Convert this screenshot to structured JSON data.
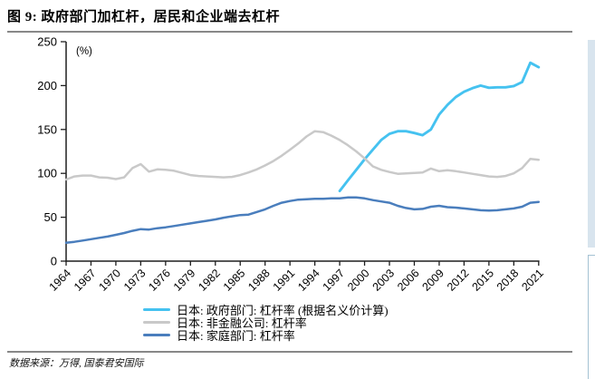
{
  "header": {
    "title": "图 9:  政府部门加杠杆，居民和企业端去杠杆"
  },
  "chart_data": {
    "type": "line",
    "title": "政府部门加杠杆，居民和企业端去杠杆",
    "unit_label": "(%)",
    "xlabel": "",
    "ylabel": "(%)",
    "ylim": [
      0,
      250
    ],
    "xlim": [
      1964,
      2021
    ],
    "y_ticks": [
      0,
      50,
      100,
      150,
      200,
      250
    ],
    "x_tick_years": [
      1964,
      1967,
      1970,
      1973,
      1976,
      1979,
      1982,
      1985,
      1988,
      1991,
      1994,
      1997,
      2000,
      2003,
      2006,
      2009,
      2012,
      2015,
      2018,
      2021
    ],
    "grid": false,
    "legend_position": "bottom",
    "series": [
      {
        "key": "government",
        "name": "日本: 政府部门: 杠杆率 (根据名义价计算)",
        "color": "#45C2F0",
        "start_year": 1997,
        "values": [
          80,
          92,
          104,
          116,
          127,
          138,
          145,
          148,
          148,
          146,
          143.5,
          150,
          167,
          178,
          187,
          193,
          197,
          200,
          197.5,
          198,
          198,
          199.5,
          204,
          226,
          221
        ]
      },
      {
        "key": "nonfinancial-corporations",
        "name": "日本: 非金融公司: 杠杆率",
        "color": "#C9C9C9",
        "start_year": 1964,
        "values": [
          93,
          96.5,
          97.5,
          97.5,
          95.5,
          95,
          93.5,
          95.5,
          106,
          110.5,
          102,
          104.5,
          104,
          103,
          100.5,
          98,
          97,
          96.5,
          96,
          95.5,
          96,
          98,
          101,
          104.5,
          109,
          114,
          120,
          127,
          134,
          142,
          148,
          147,
          143,
          138,
          132,
          125,
          117,
          108,
          104,
          101.5,
          99.5,
          100,
          100.5,
          101,
          105.5,
          102.5,
          103.5,
          102.5,
          101,
          99.5,
          98,
          96.5,
          96,
          97,
          100,
          106,
          116.5,
          115.5
        ]
      },
      {
        "key": "household",
        "name": "日本: 家庭部门: 杠杆率",
        "color": "#4A7EBD",
        "start_year": 1964,
        "values": [
          21,
          22,
          23.5,
          25,
          26.5,
          28,
          30,
          32,
          34.5,
          36.5,
          36,
          37.5,
          38.5,
          40,
          41.5,
          43,
          44.5,
          46,
          47.5,
          49.5,
          51,
          52.5,
          53,
          56,
          59,
          63,
          66.5,
          68.5,
          70,
          70.5,
          71,
          71,
          71.5,
          71.5,
          72.5,
          72.5,
          71.5,
          69.5,
          68,
          66.5,
          63,
          60.5,
          59,
          59.5,
          62,
          63,
          61.5,
          61,
          60,
          59,
          58,
          57.5,
          58,
          59,
          60,
          62,
          66.5,
          67.5
        ]
      }
    ]
  },
  "footer": {
    "source": "数据来源：万得, 国泰君安国际"
  }
}
